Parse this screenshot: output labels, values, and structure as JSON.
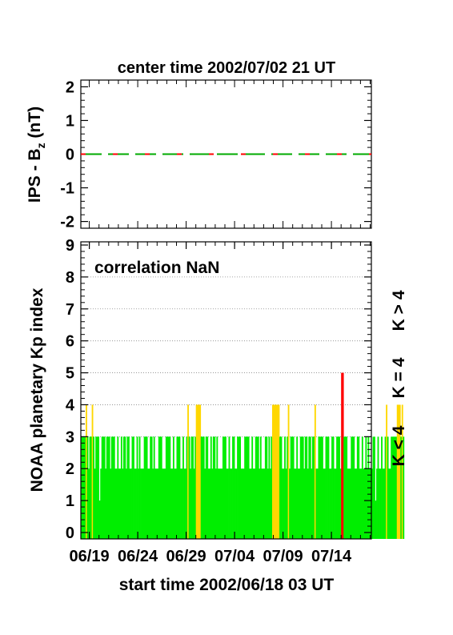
{
  "top_title": "center time 2002/07/02 21 UT",
  "bottom_xlabel": "start time 2002/06/18 03 UT",
  "legend": [
    {
      "label": "K > 4",
      "color": "#ff0000"
    },
    {
      "label": "K = 4",
      "color": "#ffd700"
    },
    {
      "label": "K < 4",
      "color": "#00ee00"
    }
  ],
  "chart_data": [
    {
      "type": "line",
      "title": "center time 2002/07/02 21 UT",
      "ylabel": "IPS - B",
      "ylabel_sub": "z",
      "ylabel_unit": " (nT)",
      "ylim": [
        -2.2,
        2.2
      ],
      "yticks": [
        "-2",
        "-1",
        "0",
        "1",
        "2"
      ],
      "xlim": [
        0,
        30
      ],
      "series": [
        {
          "values": [
            0,
            0
          ],
          "x": [
            0,
            30
          ],
          "color": "#00aa00",
          "dash": "long"
        },
        {
          "values": [
            0,
            0
          ],
          "x": [
            0,
            30
          ],
          "color": "#ff0000",
          "dash": "short"
        }
      ]
    },
    {
      "type": "bar",
      "annotation": "correlation NaN",
      "ylabel": "NOAA planetary Kp index",
      "xlabel": "start time 2002/06/18 03 UT",
      "ylim": [
        -0.2,
        9.1
      ],
      "yticks": [
        "0",
        "1",
        "2",
        "3",
        "4",
        "5",
        "6",
        "7",
        "8",
        "9"
      ],
      "xlim": [
        0,
        30
      ],
      "xticks": [
        {
          "label": "06/19",
          "x": 0.875
        },
        {
          "label": "06/24",
          "x": 5.875
        },
        {
          "label": "06/29",
          "x": 10.875
        },
        {
          "label": "07/04",
          "x": 15.875
        },
        {
          "label": "07/09",
          "x": 20.875
        },
        {
          "label": "07/14",
          "x": 25.875
        }
      ],
      "grid_y": [
        3,
        4,
        5,
        6,
        7,
        8
      ],
      "bar_width_days": 0.125,
      "kp": [
        3,
        3,
        3,
        3,
        4,
        3,
        2,
        3,
        3,
        4,
        3,
        2,
        3,
        3,
        3,
        1,
        2,
        3,
        3,
        3,
        2,
        3,
        3,
        3,
        2,
        3,
        3,
        3,
        2,
        2,
        3,
        2,
        2,
        3,
        2,
        3,
        3,
        2,
        3,
        3,
        2,
        2,
        3,
        3,
        2,
        2,
        3,
        2,
        3,
        2,
        2,
        2,
        3,
        3,
        3,
        2,
        2,
        3,
        3,
        2,
        3,
        2,
        2,
        2,
        3,
        3,
        3,
        2,
        2,
        2,
        3,
        3,
        3,
        3,
        2,
        2,
        3,
        2,
        2,
        3,
        3,
        3,
        2,
        2,
        3,
        2,
        2,
        3,
        4,
        3,
        2,
        3,
        3,
        2,
        3,
        4,
        4,
        4,
        4,
        3,
        3,
        3,
        2,
        3,
        3,
        2,
        2,
        3,
        2,
        3,
        3,
        2,
        3,
        2,
        2,
        2,
        2,
        3,
        3,
        3,
        2,
        2,
        3,
        2,
        2,
        3,
        3,
        2,
        2,
        3,
        3,
        3,
        2,
        2,
        2,
        3,
        3,
        3,
        3,
        2,
        2,
        3,
        2,
        2,
        3,
        3,
        3,
        2,
        3,
        2,
        2,
        2,
        3,
        3,
        2,
        3,
        2,
        3,
        4,
        4,
        4,
        4,
        4,
        4,
        3,
        3,
        2,
        2,
        3,
        2,
        3,
        4,
        2,
        3,
        3,
        3,
        2,
        2,
        3,
        2,
        2,
        3,
        3,
        3,
        2,
        3,
        3,
        2,
        3,
        3,
        2,
        3,
        3,
        4,
        2,
        2,
        3,
        3,
        3,
        3,
        2,
        2,
        3,
        3,
        3,
        2,
        2,
        3,
        3,
        2,
        2,
        3,
        3,
        3,
        2,
        5,
        5,
        3,
        3,
        3,
        2,
        2,
        2,
        3,
        3,
        3,
        2,
        2,
        3,
        3,
        2,
        2,
        3,
        2,
        2,
        3,
        2,
        3,
        2,
        2,
        2,
        3,
        3,
        1,
        2,
        3,
        2,
        2,
        3,
        2,
        2,
        3,
        4,
        3,
        2,
        2,
        3,
        3,
        3,
        3,
        3,
        4,
        4,
        4,
        3,
        4,
        3
      ]
    }
  ]
}
